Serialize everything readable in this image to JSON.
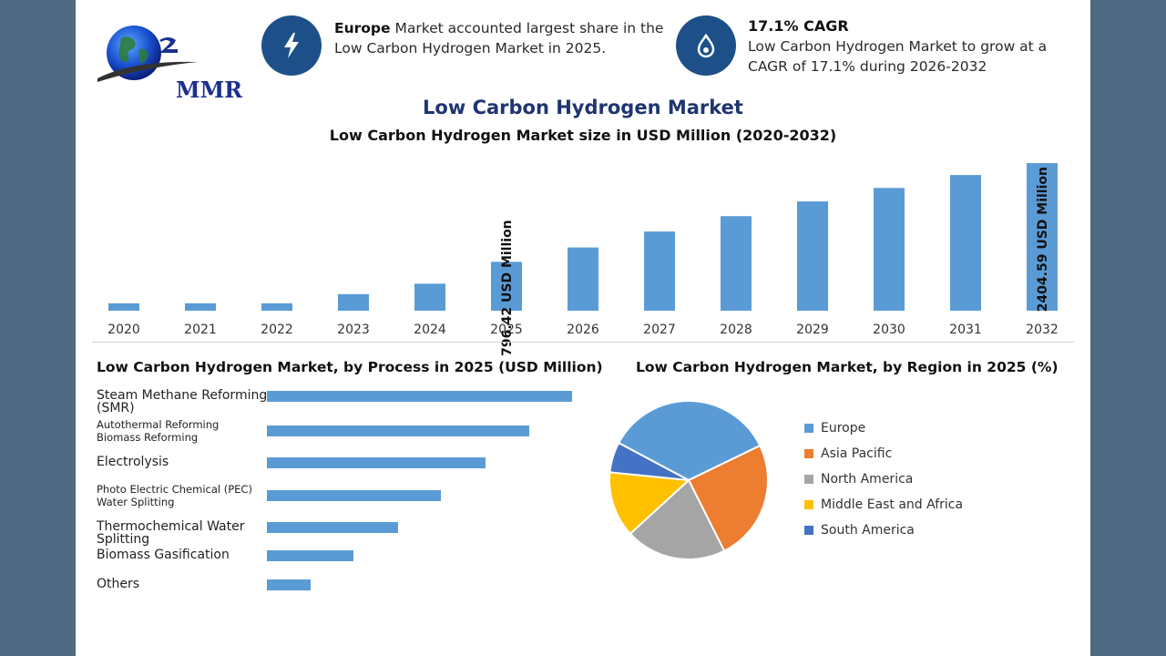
{
  "brand": {
    "name": "MMR"
  },
  "highlights": [
    {
      "bold": "Europe",
      "text": " Market accounted largest share in the Low Carbon Hydrogen Market in 2025.",
      "icon": "lightning-icon"
    },
    {
      "bold": "17.1% CAGR",
      "text": "Low Carbon Hydrogen Market to grow at a CAGR of 17.1% during 2026-2032",
      "icon": "hydrogen-drop-icon"
    }
  ],
  "colors": {
    "accent": "#1d5089",
    "bar": "#5b9bd5",
    "title": "#1f3570"
  },
  "chart_data": [
    {
      "type": "bar",
      "title": "Low Carbon Hydrogen Market",
      "subtitle": "Low Carbon Hydrogen Market size in USD Million (2020-2032)",
      "categories": [
        "2020",
        "2021",
        "2022",
        "2023",
        "2024",
        "2025",
        "2026",
        "2027",
        "2028",
        "2029",
        "2030",
        "2031",
        "2032"
      ],
      "values": [
        120,
        120,
        120,
        270,
        440,
        796.42,
        1030,
        1290,
        1540,
        1780,
        2000,
        2210,
        2404.59
      ],
      "annotations": [
        {
          "category": "2025",
          "text": "796.42 USD Million"
        },
        {
          "category": "2032",
          "text": "2404.59 USD Million"
        }
      ],
      "ylim": [
        0,
        2404.59
      ],
      "grid": false
    },
    {
      "type": "bar",
      "orientation": "horizontal",
      "title": "Low Carbon Hydrogen Market, by Process in 2025 (USD Million)",
      "categories": [
        "Steam Methane Reforming (SMR)",
        "Autothermal Reforming Biomass Reforming",
        "Electrolysis",
        "Photo Electric Chemical (PEC) Water Splitting",
        "Thermochemical Water Splitting",
        "Biomass Gasification",
        "Others"
      ],
      "values": [
        335,
        288,
        240,
        191,
        144,
        95,
        48
      ],
      "ylim": [
        0,
        335
      ]
    },
    {
      "type": "pie",
      "title": "Low Carbon Hydrogen Market, by Region in 2025 (%)",
      "categories": [
        "Europe",
        "Asia Pacific",
        "North America",
        "Middle East and Africa",
        "South America"
      ],
      "values": [
        34,
        24,
        20,
        13,
        6
      ],
      "colors": [
        "#5b9bd5",
        "#ed7d31",
        "#a5a5a5",
        "#ffc000",
        "#4472c4"
      ],
      "legend": "right"
    }
  ]
}
